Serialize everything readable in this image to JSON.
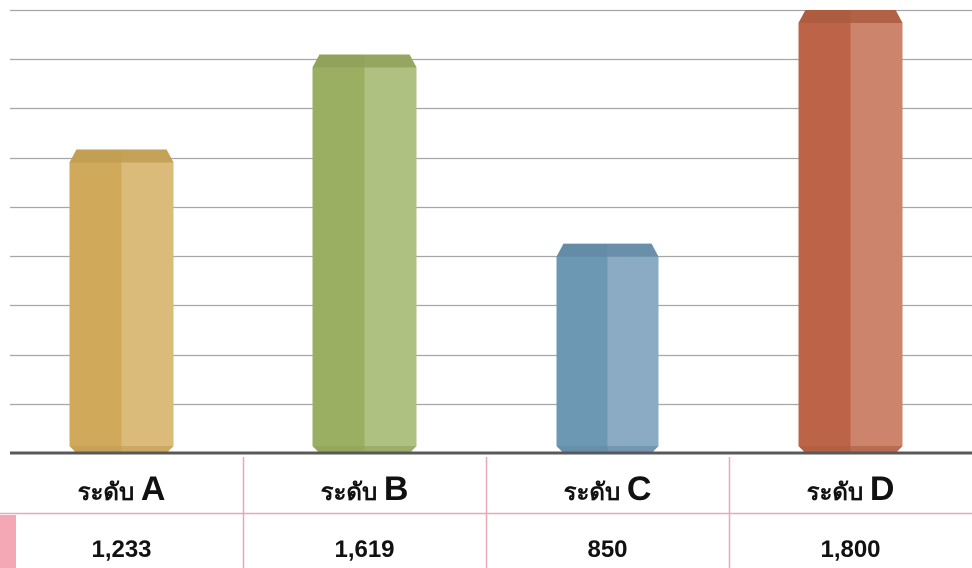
{
  "chart_data": {
    "type": "bar",
    "categories": [
      {
        "prefix": "ระดับ",
        "letter": "A"
      },
      {
        "prefix": "ระดับ",
        "letter": "B"
      },
      {
        "prefix": "ระดับ",
        "letter": "C"
      },
      {
        "prefix": "ระดับ",
        "letter": "D"
      }
    ],
    "values": [
      1233,
      1619,
      850,
      1800
    ],
    "value_labels": [
      "1,233",
      "1,619",
      "850",
      "1,800"
    ],
    "ylim": [
      0,
      1800
    ],
    "grid": true,
    "legend": "none",
    "colors": [
      "#D1A95A",
      "#9BAF62",
      "#6C98B4",
      "#BD6448"
    ],
    "highlight_colors": [
      "#DBBD7D",
      "#B0C384",
      "#8FADC6",
      "#CE8770"
    ],
    "cap_colors": [
      "#C09D52",
      "#8FA15A",
      "#6489A5",
      "#AC5B40"
    ],
    "axis_color": "#595959",
    "gridline_color": "#A6A6A6",
    "table_border_color": "#E5A9B8",
    "table_accent_color": "#F4A7B5"
  }
}
